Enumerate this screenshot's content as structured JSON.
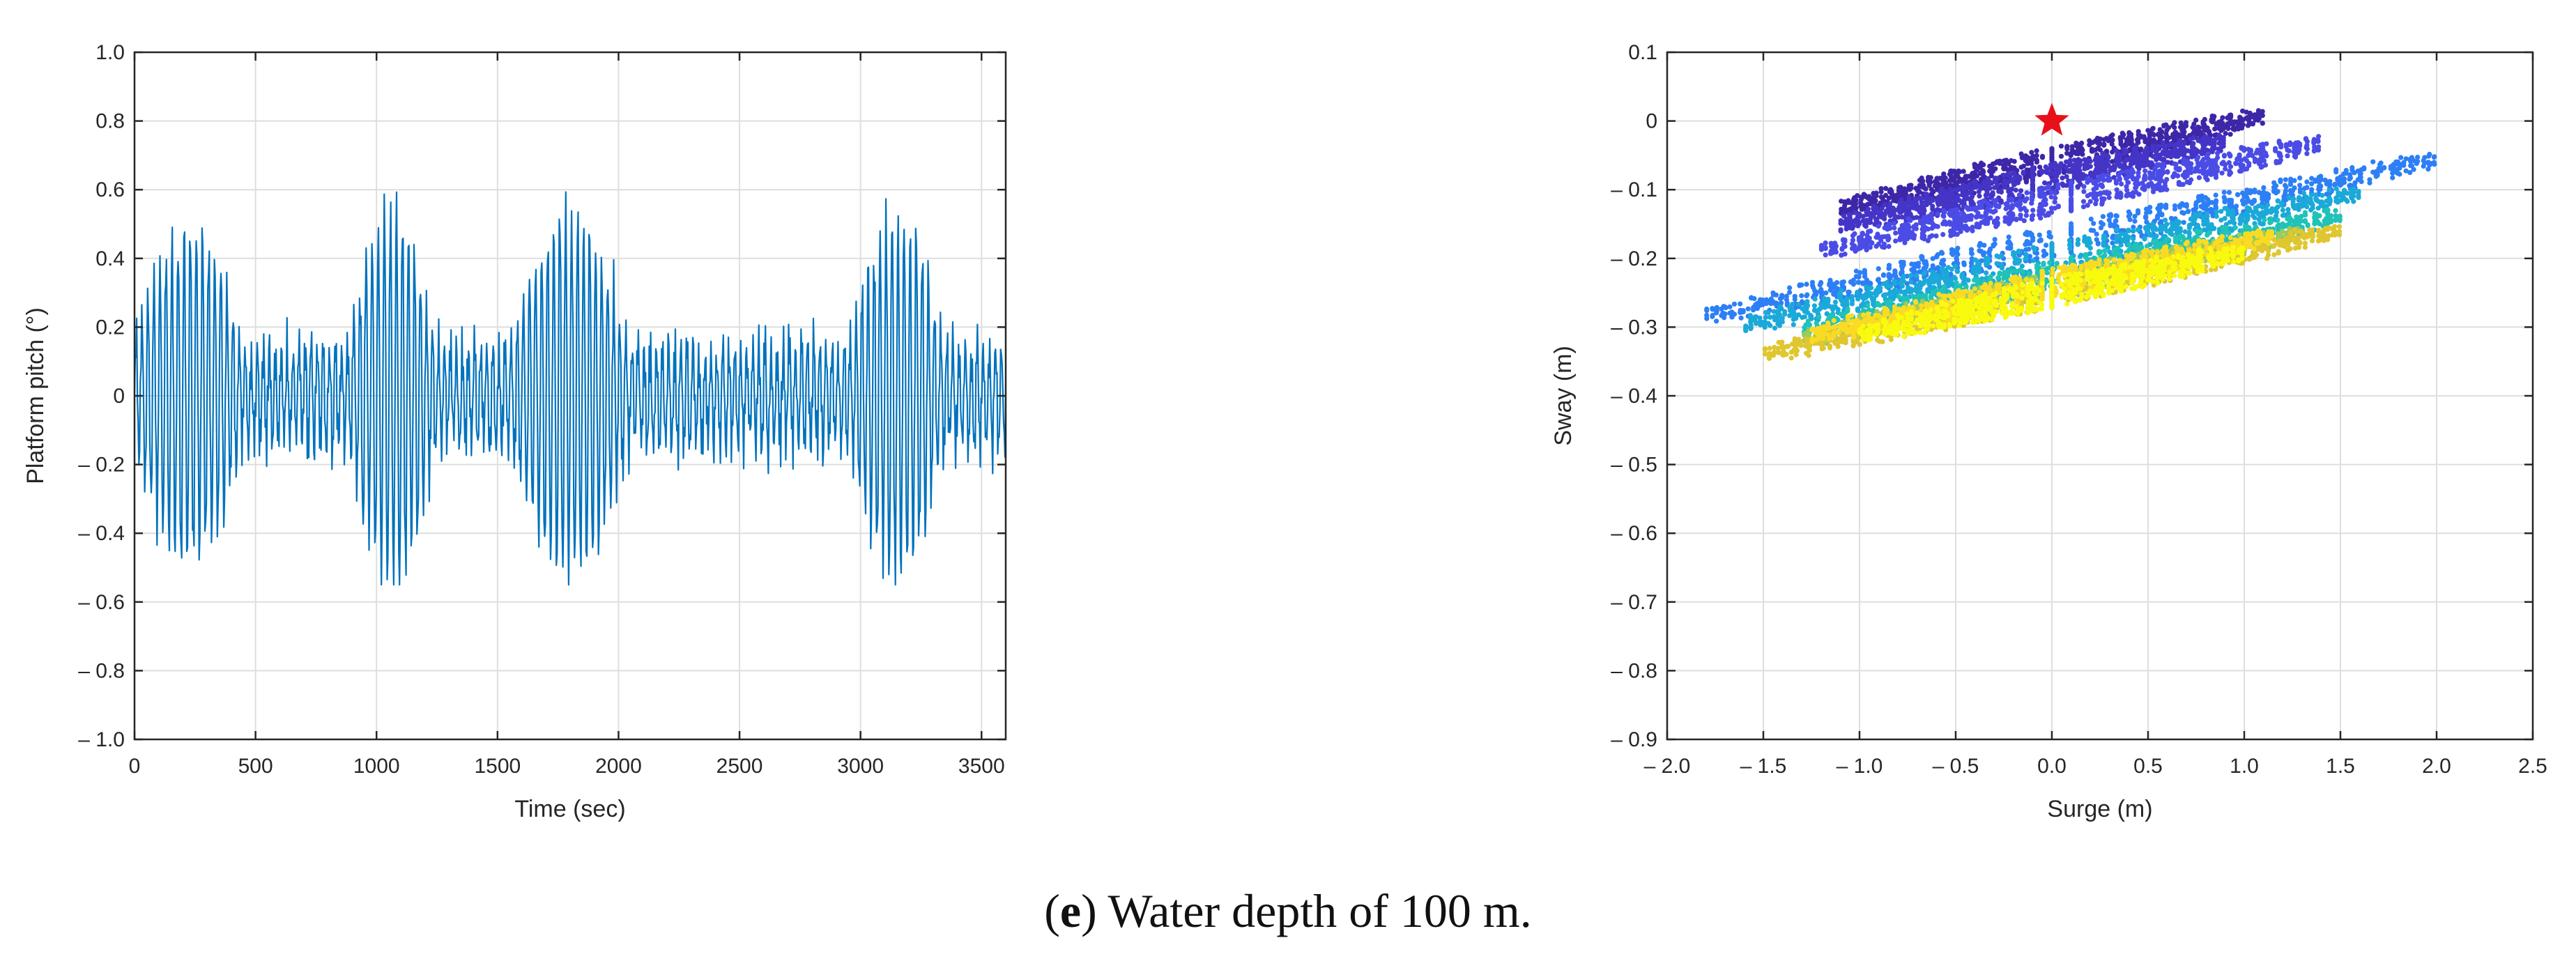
{
  "caption": {
    "open_paren": "(",
    "letter": "e",
    "rest": ") Water depth of 100 m."
  },
  "colors": {
    "pitch_line": "#0072BD",
    "marker": "#e8111a",
    "parula": [
      "#3e26a8",
      "#4435c7",
      "#4b4ce6",
      "#2d7ff5",
      "#1aa9d8",
      "#21c2b8",
      "#9acb5c",
      "#e0c62f",
      "#fadb24",
      "#f9fb0e"
    ]
  },
  "chart_data": [
    {
      "type": "line",
      "xlabel": "Time (sec)",
      "ylabel": "Platform pitch (°)",
      "xlim": [
        0,
        3600
      ],
      "ylim": [
        -1.0,
        1.0
      ],
      "grid": true,
      "x_ticks": [
        0,
        500,
        1000,
        1500,
        2000,
        2500,
        3000,
        3500
      ],
      "x_tick_labels": [
        "0",
        "500",
        "1000",
        "1500",
        "2000",
        "2500",
        "3000",
        "3500"
      ],
      "y_ticks": [
        1.0,
        0.8,
        0.6,
        0.4,
        0.2,
        0,
        -0.2,
        -0.4,
        -0.6,
        -0.8,
        -1.0
      ],
      "y_tick_labels": [
        "1.0",
        "0.8",
        "0.6",
        "0.4",
        "0.2",
        "0",
        "– 0.2",
        "– 0.4",
        "– 0.6",
        "– 0.8",
        "– 1.0"
      ],
      "series": [
        {
          "name": "Platform pitch",
          "sample_interval_s": 3,
          "wave_groups": [
            {
              "t_start": 0,
              "t_end": 450,
              "amplitude": 0.48
            },
            {
              "t_start": 880,
              "t_end": 1250,
              "amplitude": 0.55
            },
            {
              "t_start": 1550,
              "t_end": 2050,
              "amplitude": 0.52
            },
            {
              "t_start": 2950,
              "t_end": 3350,
              "amplitude": 0.52
            }
          ],
          "wave_period_s": 25,
          "background_amplitude": 0.14,
          "observed_max": 0.6,
          "observed_min": -0.55
        }
      ]
    },
    {
      "type": "scatter",
      "xlabel": "Surge (m)",
      "ylabel": "Sway (m)",
      "xlim": [
        -2.0,
        2.5
      ],
      "ylim": [
        -0.9,
        0.1
      ],
      "grid": true,
      "x_ticks": [
        -2.0,
        -1.5,
        -1.0,
        -0.5,
        0.0,
        0.5,
        1.0,
        1.5,
        2.0,
        2.5
      ],
      "x_tick_labels": [
        "– 2.0",
        "– 1.5",
        "– 1.0",
        "– 0.5",
        "0.0",
        "0.5",
        "1.0",
        "1.5",
        "2.0",
        "2.5"
      ],
      "y_ticks": [
        0.1,
        0,
        -0.1,
        -0.2,
        -0.3,
        -0.4,
        -0.5,
        -0.6,
        -0.7,
        -0.8,
        -0.9
      ],
      "y_tick_labels": [
        "0.1",
        "0",
        "– 0.1",
        "– 0.2",
        "– 0.3",
        "– 0.4",
        "– 0.5",
        "– 0.6",
        "– 0.7",
        "– 0.8",
        "– 0.9"
      ],
      "start_marker": {
        "x": 0.0,
        "y": 0.0,
        "shape": "star"
      },
      "color_by": "time",
      "trajectory_segments": [
        {
          "x_center": 0.0,
          "y_center": -0.06,
          "x_amp": 1.1,
          "y_slope": 0.06,
          "color_index": 0
        },
        {
          "x_center": -0.1,
          "y_center": -0.09,
          "x_amp": 1.0,
          "y_slope": 0.06,
          "color_index": 1
        },
        {
          "x_center": 0.1,
          "y_center": -0.11,
          "x_amp": 1.3,
          "y_slope": 0.06,
          "color_index": 2
        },
        {
          "x_center": 0.1,
          "y_center": -0.17,
          "x_amp": 1.9,
          "y_slope": 0.06,
          "color_index": 3
        },
        {
          "x_center": 0.0,
          "y_center": -0.2,
          "x_amp": 1.6,
          "y_slope": 0.06,
          "color_index": 4
        },
        {
          "x_center": 0.1,
          "y_center": -0.22,
          "x_amp": 1.4,
          "y_slope": 0.06,
          "color_index": 5
        },
        {
          "x_center": 0.0,
          "y_center": -0.24,
          "x_amp": 1.3,
          "y_slope": 0.06,
          "color_index": 6
        },
        {
          "x_center": 0.0,
          "y_center": -0.25,
          "x_amp": 1.5,
          "y_slope": 0.06,
          "color_index": 7
        },
        {
          "x_center": -0.05,
          "y_center": -0.24,
          "x_amp": 1.2,
          "y_slope": 0.06,
          "color_index": 8
        },
        {
          "x_center": 0.0,
          "y_center": -0.25,
          "x_amp": 1.0,
          "y_slope": 0.06,
          "color_index": 9
        }
      ]
    }
  ]
}
